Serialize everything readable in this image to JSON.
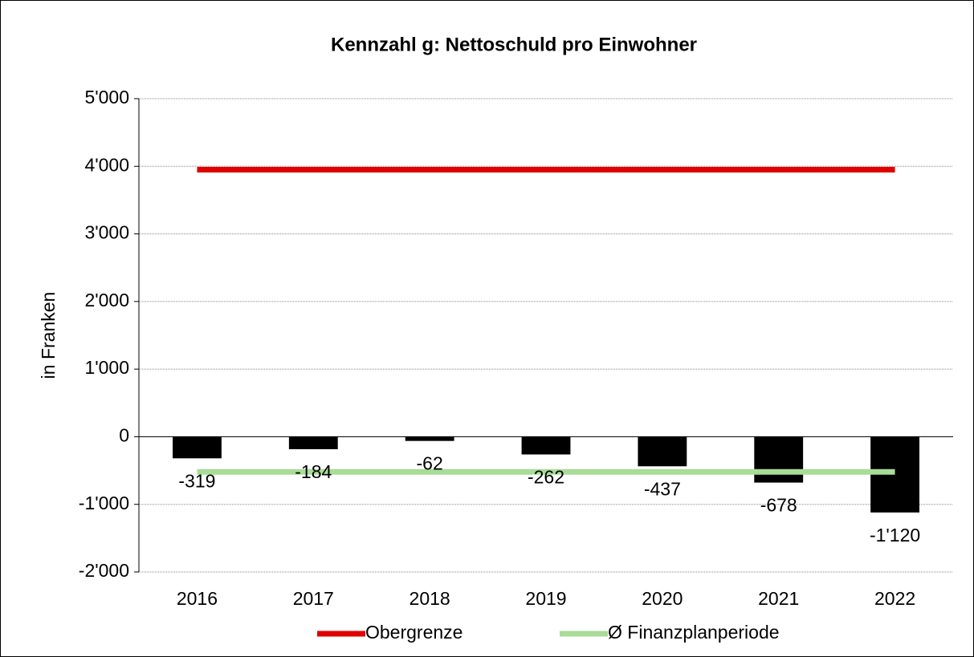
{
  "chart_data": {
    "type": "bar",
    "title": "Kennzahl g: Nettoschuld pro Einwohner",
    "y_label": "in Franken",
    "categories": [
      "2016",
      "2017",
      "2018",
      "2019",
      "2020",
      "2021",
      "2022"
    ],
    "values": [
      -319,
      -184,
      -62,
      -262,
      -437,
      -678,
      -1120
    ],
    "value_labels": [
      "-319",
      "-184",
      "-62",
      "-262",
      "-437",
      "-678",
      "-1'120"
    ],
    "color": "#000000",
    "series": [
      {
        "name": "Obergrenze",
        "type": "line",
        "color": "#e00000",
        "values": [
          3950,
          3950,
          3950,
          3950,
          3950,
          3950,
          3950
        ]
      },
      {
        "name": "Ø Finanzplanperiode",
        "type": "line",
        "color": "#a8dc98",
        "values": [
          -520,
          -520,
          -520,
          -520,
          -520,
          -520,
          -520
        ]
      }
    ],
    "ylim": [
      -2000,
      5000
    ],
    "yticks": [
      {
        "value": -2000,
        "label": "-2'000"
      },
      {
        "value": -1000,
        "label": "-1'000"
      },
      0,
      {
        "value": 1000,
        "label": "1'000"
      },
      {
        "value": 2000,
        "label": "2'000"
      },
      {
        "value": 3000,
        "label": "3'000"
      },
      {
        "value": 4000,
        "label": "4'000"
      },
      {
        "value": 5000,
        "label": "5'000"
      }
    ],
    "grid": true,
    "legend": "bottom"
  }
}
